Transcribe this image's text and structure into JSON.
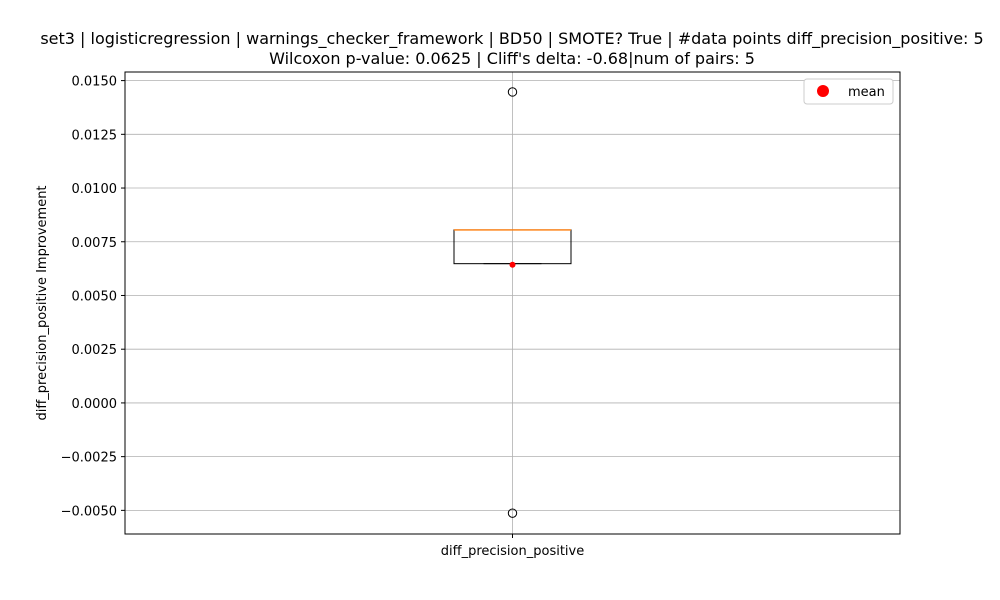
{
  "chart_data": {
    "type": "box",
    "title_line1": "set3 | logisticregression | warnings_checker_framework | BD50 | SMOTE? True | #data points diff_precision_positive: 5",
    "title_line2": "Wilcoxon p-value: 0.0625 | Cliff's delta: -0.68|num of pairs: 5",
    "xlabel": "",
    "ylabel": "diff_precision_positive Improvement",
    "categories": [
      "diff_precision_positive"
    ],
    "ylim": [
      -0.0061,
      0.0154
    ],
    "yticks": [
      -0.005,
      -0.0025,
      0,
      0.0025,
      0.005,
      0.0075,
      0.01,
      0.0125,
      0.015
    ],
    "ytick_labels": [
      "−0.0050",
      "−0.0025",
      "0.0000",
      "0.0025",
      "0.0050",
      "0.0075",
      "0.0100",
      "0.0125",
      "0.0150"
    ],
    "box": {
      "q1": 0.00648,
      "median": 0.00805,
      "q3": 0.00805,
      "whisker_low": 0.00648,
      "whisker_high": 0.00805,
      "mean": 0.00643,
      "outliers": [
        0.01447,
        -0.00513
      ]
    },
    "grid": true,
    "legend": {
      "position": "upper right",
      "entries": [
        "mean"
      ]
    },
    "colors": {
      "box": "#000000",
      "median": "#ff7f0e",
      "mean": "#ff0000",
      "grid": "#b0b0b0"
    }
  }
}
